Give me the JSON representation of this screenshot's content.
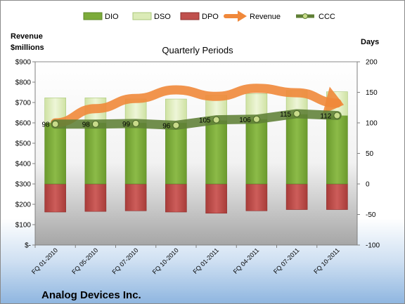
{
  "chart_data": {
    "type": "bar",
    "subtitle": "Quarterly Periods",
    "company": "Analog Devices Inc.",
    "left_axis_title_line1": "Revenue",
    "left_axis_title_line2": "$millions",
    "right_axis_title": "Days",
    "legend_position": "top",
    "grid": false,
    "categories": [
      "FQ 01-2010",
      "FQ 05-2010",
      "FQ 07-2010",
      "FQ 10-2010",
      "FQ 01-2011",
      "FQ 04-2011",
      "FQ 07-2011",
      "FQ 10-2011"
    ],
    "left_axis": {
      "min": 0,
      "max": 900,
      "step": 100,
      "tick_labels": [
        "$-",
        "$100",
        "$200",
        "$300",
        "$400",
        "$500",
        "$600",
        "$700",
        "$800",
        "$900"
      ]
    },
    "right_axis": {
      "min": -100,
      "max": 200,
      "step": 50,
      "tick_labels": [
        "-100",
        "-50",
        "0",
        "50",
        "100",
        "150",
        "200"
      ]
    },
    "series": [
      {
        "name": "DIO",
        "axis": "right",
        "kind": "stacked-bar",
        "color": "#7cab3a",
        "values": [
          100,
          100,
          100,
          100,
          104,
          106,
          114,
          112
        ]
      },
      {
        "name": "DSO",
        "axis": "right",
        "kind": "stacked-bar",
        "color": "#dbebb7",
        "values": [
          41,
          41,
          39,
          39,
          41,
          42,
          39,
          39
        ]
      },
      {
        "name": "DPO",
        "axis": "right",
        "kind": "negative-bar",
        "color": "#c0504d",
        "values": [
          -46,
          -45,
          -44,
          -46,
          -48,
          -44,
          -42,
          -42
        ]
      },
      {
        "name": "Revenue",
        "axis": "left",
        "kind": "arrow-line",
        "color": "#f0883a",
        "values": [
          600,
          670,
          720,
          762,
          730,
          770,
          748,
          697
        ]
      },
      {
        "name": "CCC",
        "axis": "right",
        "kind": "line-markers",
        "color": "#5f7f35",
        "values": [
          98,
          98,
          99,
          96,
          105,
          106,
          115,
          112
        ]
      }
    ],
    "ccc_labels": [
      "98",
      "98",
      "99",
      "96",
      "105",
      "106",
      "115",
      "112"
    ]
  }
}
